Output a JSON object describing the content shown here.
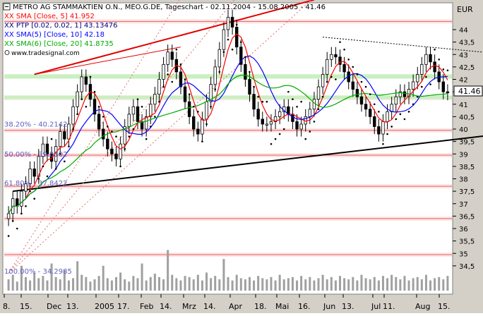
{
  "chart_data": {
    "type": "candlestick",
    "title": "METRO AG STAMMAKTIEN O.N., MEO.G.DE, Tageschart - 02.11.2004 - 15.08.2005 - 41.46",
    "currency": "EUR",
    "last_price": "41.46",
    "legend": [
      {
        "label": "XX SMA [Close, 5] 41.952",
        "color": "#ff0000"
      },
      {
        "label": "XX PTP [0.02, 0.02, 1] 43.13476",
        "color": "#000080"
      },
      {
        "label": "XX SMA(5) [Close, 10] 42.18",
        "color": "#0000ff"
      },
      {
        "label": "XX SMA(6) [Close, 20] 41.8735",
        "color": "#00aa00"
      }
    ],
    "watermark": "www.tradesignal.com",
    "y_axis": {
      "min": 34.0,
      "max": 45.3,
      "ticks": [
        "44",
        "43,5",
        "43",
        "42,5",
        "42",
        "41,5",
        "41",
        "40,5",
        "40",
        "39,5",
        "39",
        "38,5",
        "38",
        "37,5",
        "37",
        "36,5",
        "36",
        "35,5",
        "35",
        "34,5"
      ]
    },
    "x_axis": {
      "ticks": [
        "8.",
        "15.",
        "Dec",
        "13.",
        "2005",
        "17.",
        "Feb",
        "14.",
        "Mrz",
        "14.",
        "Apr",
        "18.",
        "Mai",
        "16.",
        "Jun",
        "13.",
        "Jul",
        "11.",
        "Aug",
        "15."
      ]
    },
    "fib_levels": [
      {
        "label": "38.20% - 40.2142",
        "price": 40.2142
      },
      {
        "label": "50.00% - 39.0102",
        "price": 39.0102
      },
      {
        "label": "61.80% - 37.8422",
        "price": 37.8422
      },
      {
        "label": "100.00% - 34.2985",
        "price": 34.2985
      }
    ],
    "horizontal_levels": [
      44.33,
      42.12,
      41.25,
      39.95,
      38.95,
      37.7,
      36.4,
      34.95
    ],
    "trendlines": {
      "upper_channel": [
        [
          6,
          42.2
        ],
        [
          71,
          45.2
        ]
      ],
      "lower_support": [
        [
          1,
          37.5
        ],
        [
          198,
          41.5
        ]
      ],
      "resistance_dotted": [
        [
          73,
          43.7
        ],
        [
          196,
          41.7
        ]
      ]
    },
    "candles_close": [
      36.6,
      37.2,
      36.9,
      37.5,
      37.8,
      38.4,
      38.1,
      38.9,
      39.4,
      39.0,
      38.7,
      39.3,
      39.9,
      39.6,
      40.2,
      40.9,
      41.5,
      42.1,
      41.8,
      41.2,
      40.6,
      40.0,
      39.6,
      39.2,
      39.0,
      38.8,
      39.4,
      40.1,
      40.6,
      40.9,
      40.3,
      40.0,
      40.5,
      41.0,
      41.4,
      42.0,
      42.6,
      43.1,
      42.8,
      42.3,
      41.7,
      41.1,
      40.5,
      40.0,
      39.8,
      40.4,
      41.1,
      41.8,
      42.5,
      43.2,
      44.0,
      44.5,
      44.1,
      43.3,
      42.6,
      42.0,
      41.4,
      40.8,
      40.4,
      40.2,
      40.2,
      40.3,
      40.5,
      40.7,
      40.9,
      40.6,
      40.3,
      40.0,
      40.2,
      40.5,
      40.8,
      41.2,
      41.7,
      42.2,
      42.8,
      43.0,
      42.9,
      42.6,
      42.3,
      41.9,
      41.6,
      41.3,
      41.0,
      40.8,
      40.5,
      40.1,
      39.8,
      40.3,
      40.7,
      41.0,
      41.3,
      41.5,
      41.3,
      41.6,
      41.9,
      42.2,
      42.6,
      43.0,
      42.7,
      42.3,
      41.9,
      41.5,
      41.46
    ],
    "volume": [
      10,
      14,
      8,
      22,
      12,
      9,
      16,
      11,
      13,
      9,
      24,
      12,
      10,
      18,
      9,
      11,
      26,
      14,
      12,
      8,
      10,
      13,
      22,
      11,
      9,
      12,
      16,
      10,
      8,
      13,
      11,
      24,
      9,
      12,
      15,
      12,
      10,
      36,
      14,
      11,
      9,
      13,
      12,
      10,
      14,
      9,
      16,
      11,
      13,
      10,
      28,
      12,
      9,
      14,
      11,
      10,
      12,
      9,
      13,
      11,
      10,
      12,
      9,
      14,
      10,
      11,
      12,
      9,
      13,
      10,
      12,
      9,
      11,
      14,
      10,
      12,
      9,
      13,
      11,
      10,
      12,
      9,
      14,
      11,
      10,
      12,
      9,
      13,
      11,
      14,
      12,
      10,
      13,
      9,
      11,
      12,
      10,
      14,
      9,
      11,
      12,
      10,
      13
    ]
  }
}
